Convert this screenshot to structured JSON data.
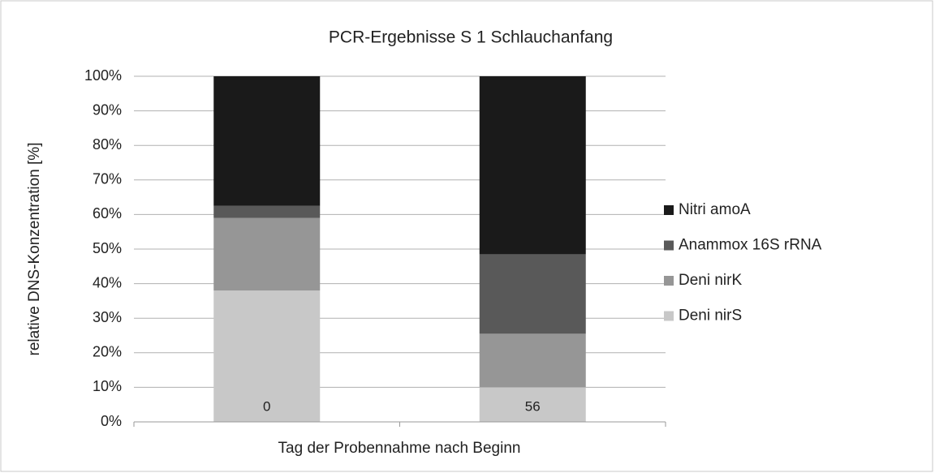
{
  "chart_data": {
    "type": "stacked_bar",
    "title": "PCR-Ergebnisse S 1 Schlauchanfang",
    "x_label": "Tag der Probennahme nach Beginn",
    "y_label": "relative DNS-Konzentration [%]",
    "categories": [
      "0",
      "56"
    ],
    "series": [
      {
        "name": "Deni nirS",
        "color": "#c8c8c8",
        "values": [
          38,
          10
        ]
      },
      {
        "name": "Deni nirK",
        "color": "#969696",
        "values": [
          21,
          15.5
        ]
      },
      {
        "name": "Anammox 16S rRNA",
        "color": "#595959",
        "values": [
          3.5,
          23
        ]
      },
      {
        "name": "Nitri amoA",
        "color": "#1a1a1a",
        "values": [
          37.5,
          51.5
        ]
      }
    ],
    "ylim": [
      0,
      100
    ],
    "yticks": [
      {
        "value": 0,
        "label": "0%"
      },
      {
        "value": 10,
        "label": "10%"
      },
      {
        "value": 20,
        "label": "20%"
      },
      {
        "value": 30,
        "label": "30%"
      },
      {
        "value": 40,
        "label": "40%"
      },
      {
        "value": 50,
        "label": "50%"
      },
      {
        "value": 60,
        "label": "60%"
      },
      {
        "value": 70,
        "label": "70%"
      },
      {
        "value": 80,
        "label": "80%"
      },
      {
        "value": 90,
        "label": "90%"
      },
      {
        "value": 100,
        "label": "100%"
      }
    ],
    "grid": true,
    "legend": "right"
  }
}
